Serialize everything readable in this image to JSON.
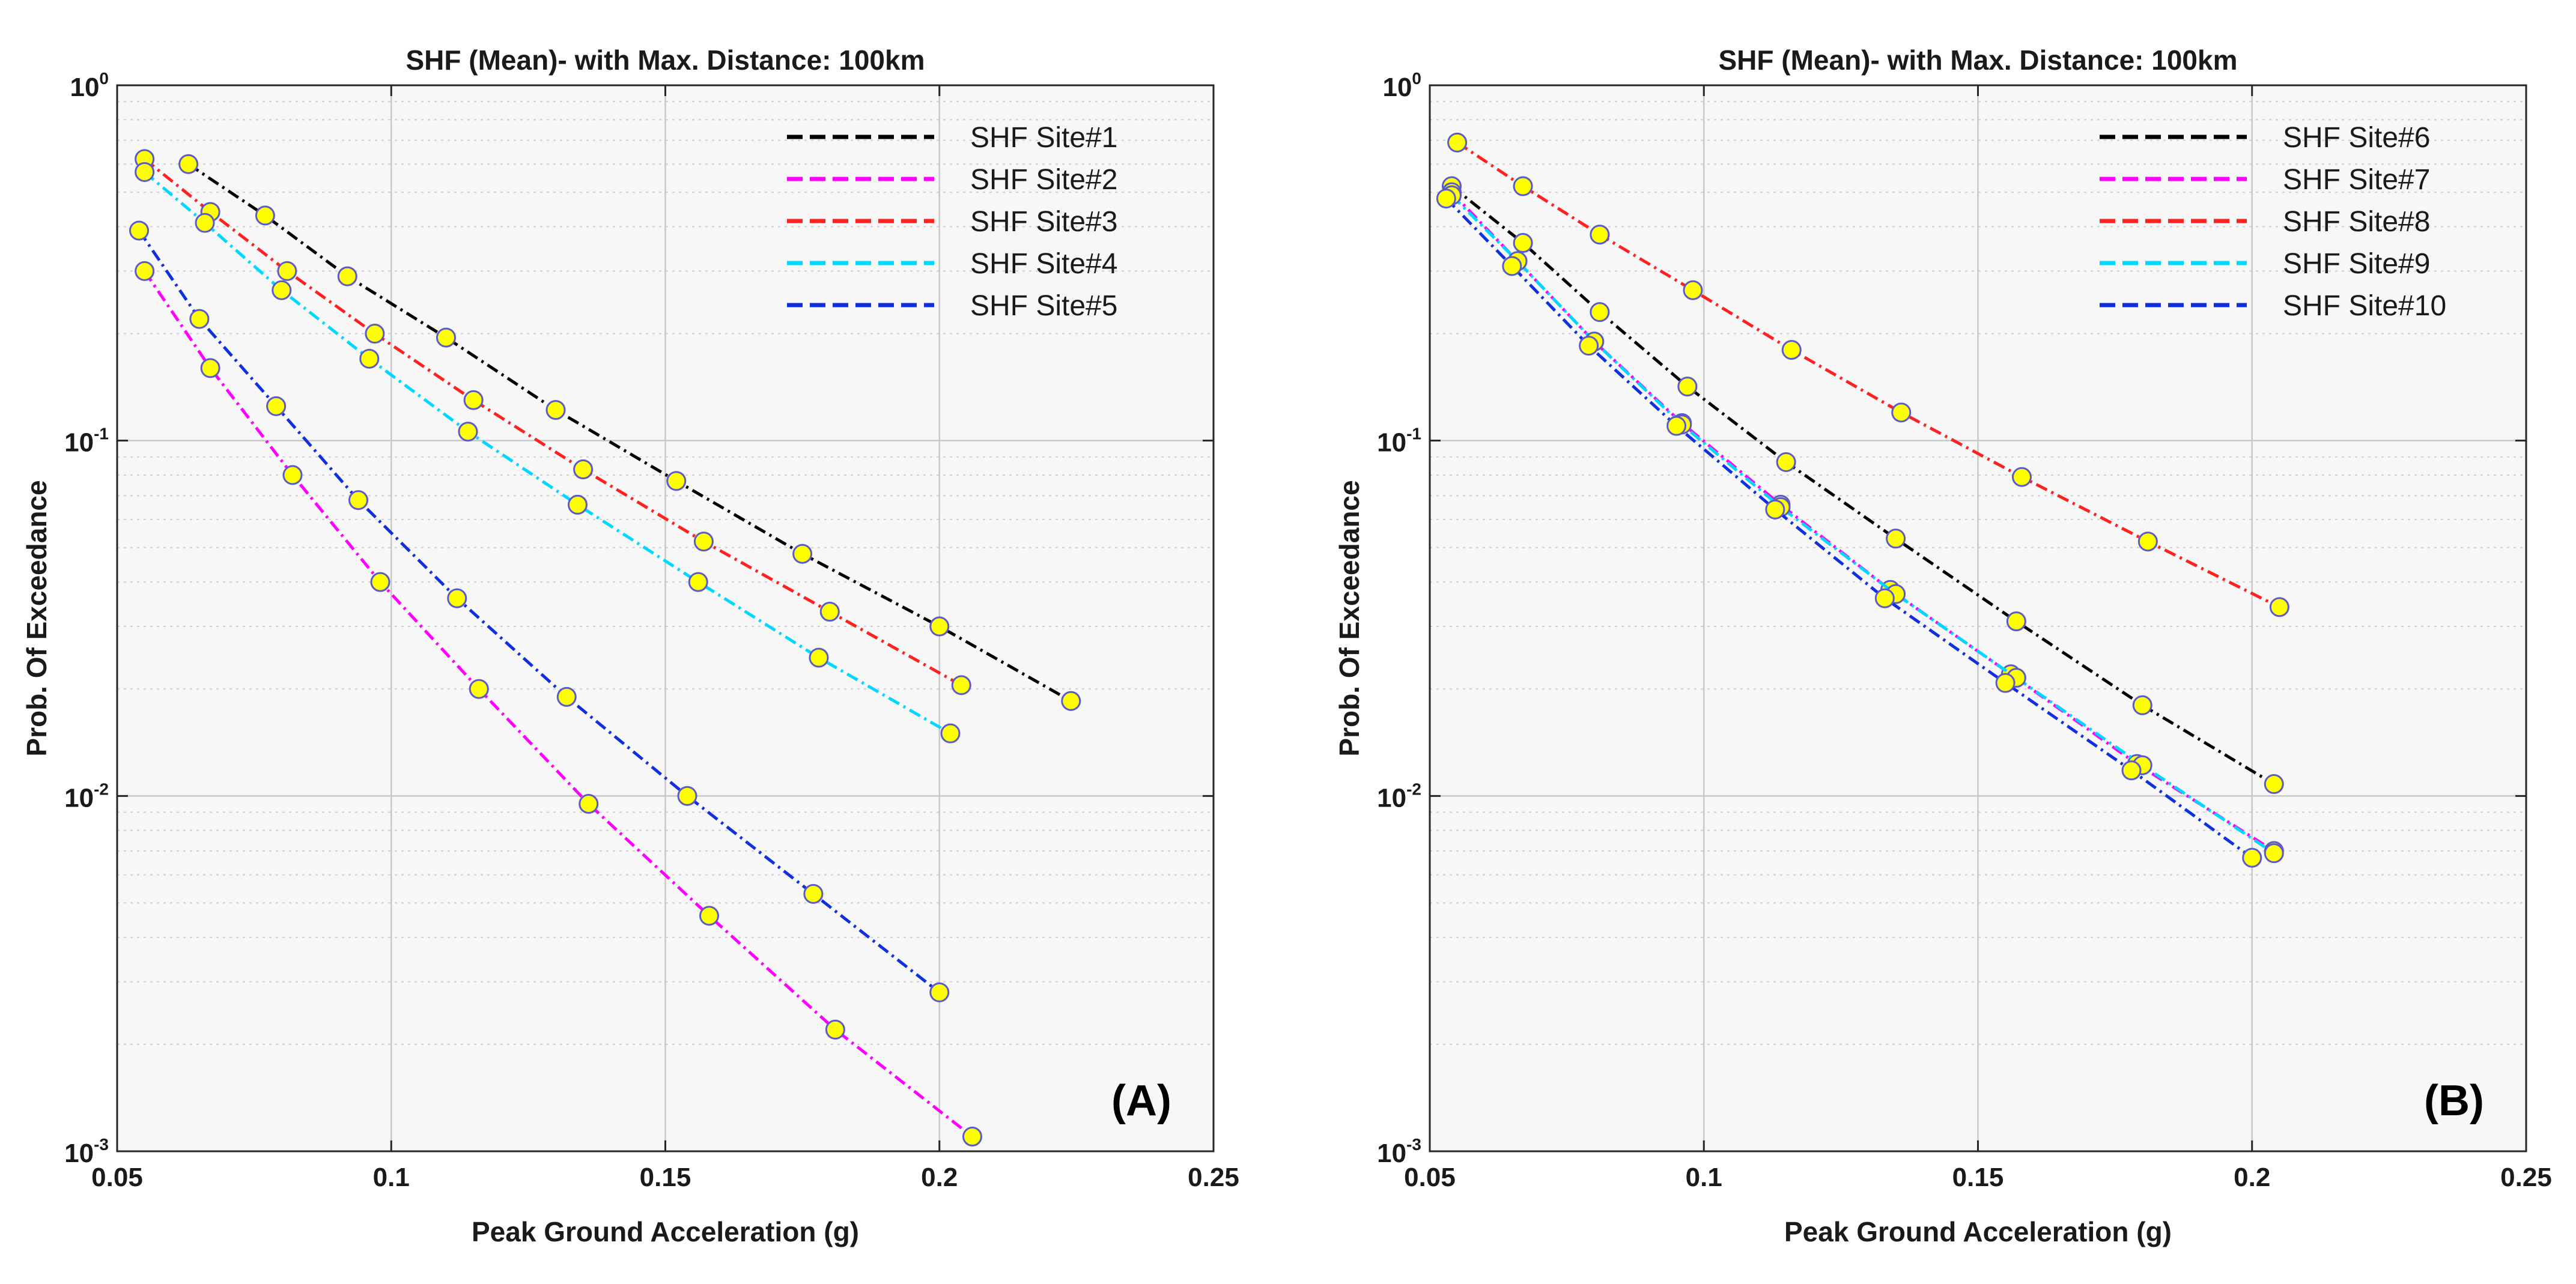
{
  "chart_data": [
    {
      "type": "line",
      "scale_y": "log",
      "title": "SHF (Mean)- with Max. Distance: 100km",
      "xlabel": "Peak Ground Acceleration (g)",
      "ylabel": "Prob. Of Exceedance",
      "xlim": [
        0.05,
        0.25
      ],
      "ylim": [
        0.001,
        1
      ],
      "x_ticks": [
        "0.05",
        "0.1",
        "0.15",
        "0.2",
        "0.25"
      ],
      "x_tick_values": [
        0.05,
        0.1,
        0.15,
        0.2,
        0.25
      ],
      "y_ticks": [
        {
          "base": "10",
          "exp": "0",
          "value": 1
        },
        {
          "base": "10",
          "exp": "-1",
          "value": 0.1
        },
        {
          "base": "10",
          "exp": "-2",
          "value": 0.01
        },
        {
          "base": "10",
          "exp": "-3",
          "value": 0.001
        }
      ],
      "grid": true,
      "legend_position": "top-right",
      "panel_label": "(A)",
      "series": [
        {
          "name": "SHF Site#1",
          "color": "#000000",
          "x": [
            0.063,
            0.077,
            0.092,
            0.11,
            0.13,
            0.152,
            0.175,
            0.2,
            0.224
          ],
          "y": [
            0.6,
            0.43,
            0.29,
            0.195,
            0.122,
            0.077,
            0.048,
            0.03,
            0.0185
          ]
        },
        {
          "name": "SHF Site#2",
          "color": "#ff00ff",
          "x": [
            0.055,
            0.067,
            0.082,
            0.098,
            0.116,
            0.136,
            0.158,
            0.181,
            0.206
          ],
          "y": [
            0.3,
            0.16,
            0.08,
            0.04,
            0.02,
            0.0095,
            0.0046,
            0.0022,
            0.0011
          ]
        },
        {
          "name": "SHF Site#3",
          "color": "#ff2020",
          "x": [
            0.055,
            0.067,
            0.081,
            0.097,
            0.115,
            0.135,
            0.157,
            0.18,
            0.204
          ],
          "y": [
            0.62,
            0.44,
            0.3,
            0.2,
            0.13,
            0.083,
            0.052,
            0.033,
            0.0205
          ]
        },
        {
          "name": "SHF Site#4",
          "color": "#00d8ff",
          "x": [
            0.055,
            0.066,
            0.08,
            0.096,
            0.114,
            0.134,
            0.156,
            0.178,
            0.202
          ],
          "y": [
            0.57,
            0.41,
            0.265,
            0.17,
            0.106,
            0.066,
            0.04,
            0.0245,
            0.015
          ]
        },
        {
          "name": "SHF Site#5",
          "color": "#1030e0",
          "x": [
            0.054,
            0.065,
            0.079,
            0.094,
            0.112,
            0.132,
            0.154,
            0.177,
            0.2
          ],
          "y": [
            0.39,
            0.22,
            0.125,
            0.068,
            0.036,
            0.019,
            0.01,
            0.0053,
            0.0028
          ]
        }
      ]
    },
    {
      "type": "line",
      "scale_y": "log",
      "title": "SHF (Mean)- with Max. Distance: 100km",
      "xlabel": "Peak Ground Acceleration (g)",
      "ylabel": "Prob. Of Exceedance",
      "xlim": [
        0.05,
        0.25
      ],
      "ylim": [
        0.001,
        1
      ],
      "x_ticks": [
        "0.05",
        "0.1",
        "0.15",
        "0.2",
        "0.25"
      ],
      "x_tick_values": [
        0.05,
        0.1,
        0.15,
        0.2,
        0.25
      ],
      "y_ticks": [
        {
          "base": "10",
          "exp": "0",
          "value": 1
        },
        {
          "base": "10",
          "exp": "-1",
          "value": 0.1
        },
        {
          "base": "10",
          "exp": "-2",
          "value": 0.01
        },
        {
          "base": "10",
          "exp": "-3",
          "value": 0.001
        }
      ],
      "grid": true,
      "legend_position": "top-right",
      "panel_label": "(B)",
      "series": [
        {
          "name": "SHF Site#6",
          "color": "#000000",
          "x": [
            0.054,
            0.067,
            0.081,
            0.097,
            0.115,
            0.135,
            0.157,
            0.18,
            0.204
          ],
          "y": [
            0.52,
            0.36,
            0.23,
            0.142,
            0.087,
            0.053,
            0.031,
            0.018,
            0.0108
          ]
        },
        {
          "name": "SHF Site#7",
          "color": "#ff00ff",
          "x": [
            0.054,
            0.066,
            0.08,
            0.096,
            0.114,
            0.134,
            0.156,
            0.179,
            0.204
          ],
          "y": [
            0.5,
            0.32,
            0.19,
            0.112,
            0.066,
            0.038,
            0.022,
            0.0123,
            0.007
          ]
        },
        {
          "name": "SHF Site#8",
          "color": "#ff2020",
          "x": [
            0.055,
            0.067,
            0.081,
            0.098,
            0.116,
            0.136,
            0.158,
            0.181,
            0.205
          ],
          "y": [
            0.69,
            0.52,
            0.38,
            0.265,
            0.18,
            0.12,
            0.079,
            0.052,
            0.034
          ]
        },
        {
          "name": "SHF Site#9",
          "color": "#00d8ff",
          "x": [
            0.054,
            0.066,
            0.08,
            0.096,
            0.114,
            0.135,
            0.157,
            0.18,
            0.204
          ],
          "y": [
            0.49,
            0.32,
            0.19,
            0.111,
            0.065,
            0.037,
            0.0215,
            0.0122,
            0.0069
          ]
        },
        {
          "name": "SHF Site#10",
          "color": "#1030e0",
          "x": [
            0.053,
            0.065,
            0.079,
            0.095,
            0.113,
            0.133,
            0.155,
            0.178,
            0.2
          ],
          "y": [
            0.48,
            0.31,
            0.185,
            0.11,
            0.064,
            0.036,
            0.0208,
            0.0118,
            0.0067
          ]
        }
      ]
    }
  ]
}
